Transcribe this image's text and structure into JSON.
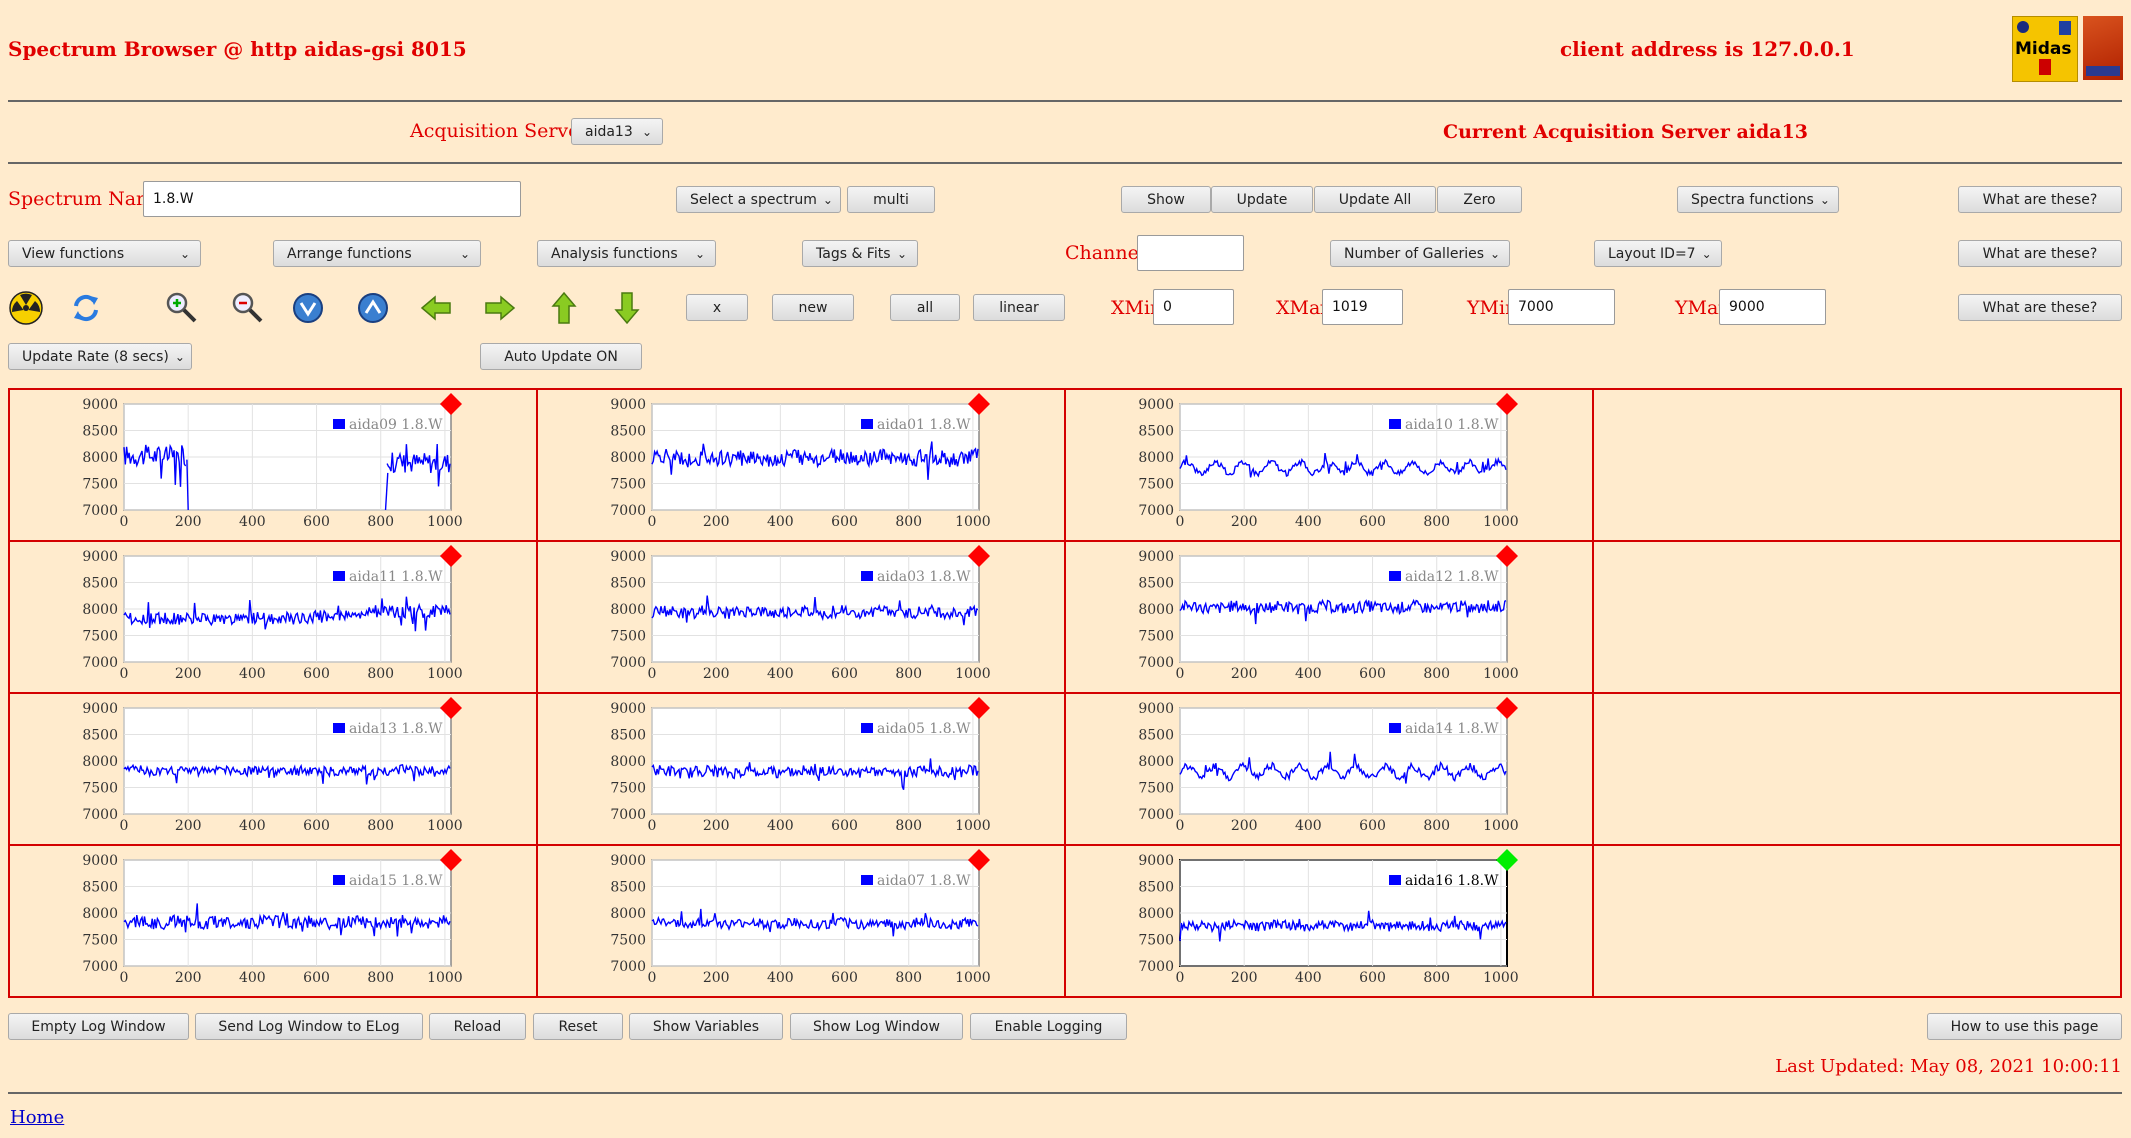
{
  "header": {
    "title": "Spectrum Browser @ http aidas-gsi 8015",
    "client_address": "client address is 127.0.0.1",
    "logo_text": "Midas"
  },
  "acquisition": {
    "label": "Acquisition Servers",
    "selected": "aida13",
    "current": "Current Acquisition Server aida13"
  },
  "row1": {
    "spectrum_label": "Spectrum Name:",
    "spectrum_value": "1.8.W",
    "select_spectrum": "Select a spectrum",
    "multi": "multi",
    "show": "Show",
    "update": "Update",
    "update_all": "Update All",
    "zero": "Zero",
    "spectra_functions": "Spectra functions",
    "what": "What are these?"
  },
  "row2": {
    "view_functions": "View functions",
    "arrange_functions": "Arrange functions",
    "analysis_functions": "Analysis functions",
    "tags_fits": "Tags & Fits",
    "channel_label": "Channel:",
    "channel_value": "",
    "galleries": "Number of Galleries",
    "layout": "Layout ID=7",
    "what": "What are these?"
  },
  "row3": {
    "x": "x",
    "new": "new",
    "all": "all",
    "linear": "linear",
    "xmin_label": "XMin",
    "xmin": "0",
    "xmax_label": "XMax",
    "xmax": "1019",
    "ymin_label": "YMin",
    "ymin": "7000",
    "ymax_label": "YMax",
    "ymax": "9000",
    "what": "What are these?"
  },
  "row4": {
    "update_rate": "Update Rate (8 secs)",
    "auto_update": "Auto Update ON"
  },
  "icons": [
    "radiation-icon",
    "refresh-icon",
    "zoom-in-icon",
    "zoom-out-icon",
    "scroll-down-icon",
    "scroll-up-icon",
    "arrow-left-icon",
    "arrow-right-icon",
    "arrow-up-icon",
    "arrow-down-icon"
  ],
  "colors": {
    "accent": "#e00000",
    "trace": "#0000ff",
    "marker_stale": "#ff0000",
    "marker_selected": "#00ee00"
  },
  "chart_data": {
    "type": "line",
    "x_ticks": [
      "0",
      "200",
      "400",
      "600",
      "800",
      "1000"
    ],
    "y_ticks": [
      "9000",
      "8500",
      "8000",
      "7500",
      "7000"
    ],
    "xlim": [
      0,
      1019
    ],
    "ylim": [
      7000,
      9000
    ],
    "grid": true,
    "legend_placement": "top-right",
    "panels": [
      {
        "name": "aida09 1.8.W",
        "selected": false,
        "shape": "gap",
        "base": 7950,
        "noise": 200,
        "amp": 150
      },
      {
        "name": "aida01 1.8.W",
        "selected": false,
        "shape": "flat",
        "base": 7980,
        "noise": 150,
        "amp": 80
      },
      {
        "name": "aida10 1.8.W",
        "selected": false,
        "shape": "wave",
        "base": 7800,
        "noise": 80,
        "amp": 180
      },
      {
        "name": "aida11 1.8.W",
        "selected": false,
        "shape": "rise",
        "base": 7820,
        "noise": 120,
        "amp": 150
      },
      {
        "name": "aida03 1.8.W",
        "selected": false,
        "shape": "flat",
        "base": 7940,
        "noise": 110,
        "amp": 60
      },
      {
        "name": "aida12 1.8.W",
        "selected": false,
        "shape": "flat",
        "base": 8030,
        "noise": 110,
        "amp": 60
      },
      {
        "name": "aida13 1.8.W",
        "selected": false,
        "shape": "flat",
        "base": 7820,
        "noise": 90,
        "amp": 50
      },
      {
        "name": "aida05 1.8.W",
        "selected": false,
        "shape": "flat",
        "base": 7800,
        "noise": 110,
        "amp": 60
      },
      {
        "name": "aida14 1.8.W",
        "selected": false,
        "shape": "wave",
        "base": 7800,
        "noise": 100,
        "amp": 170
      },
      {
        "name": "aida15 1.8.W",
        "selected": false,
        "shape": "flat",
        "base": 7820,
        "noise": 120,
        "amp": 60
      },
      {
        "name": "aida07 1.8.W",
        "selected": false,
        "shape": "flat",
        "base": 7800,
        "noise": 90,
        "amp": 60
      },
      {
        "name": "aida16 1.8.W",
        "selected": true,
        "shape": "flat",
        "base": 7760,
        "noise": 90,
        "amp": 50
      }
    ]
  },
  "bottom": {
    "empty_log": "Empty Log Window",
    "send_log": "Send Log Window to ELog",
    "reload": "Reload",
    "reset": "Reset",
    "show_vars": "Show Variables",
    "show_log": "Show Log Window",
    "enable_logging": "Enable Logging",
    "how_to": "How to use this page",
    "last_updated": "Last Updated: May 08, 2021 10:00:11",
    "home": "Home"
  }
}
